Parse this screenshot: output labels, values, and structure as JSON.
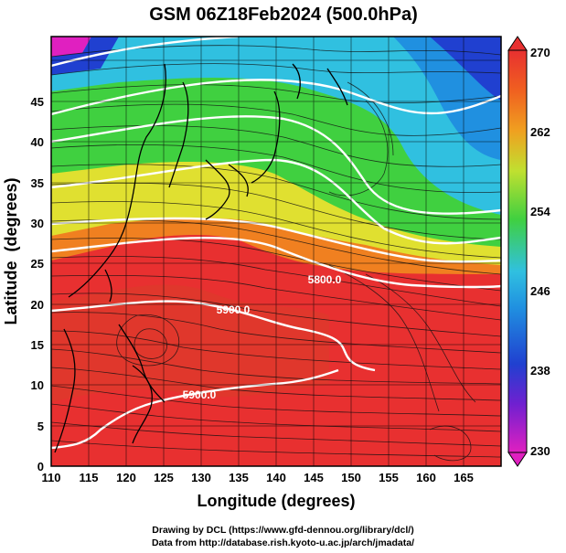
{
  "title": "GSM 06Z18Feb2024 (500.0hPa)",
  "map": {
    "xlabel": "Longitude (degrees)",
    "ylabel": "Latitude  (degrees)",
    "x_ticks": [
      "110",
      "115",
      "120",
      "125",
      "130",
      "135",
      "140",
      "145",
      "150",
      "155",
      "160",
      "165"
    ],
    "y_ticks": [
      "0",
      "5",
      "10",
      "15",
      "20",
      "25",
      "30",
      "35",
      "40",
      "45"
    ],
    "contour_labels": [
      "5800.0",
      "5900.0",
      "5900.0"
    ],
    "colorbar_ticks": [
      "270",
      "262",
      "254",
      "246",
      "238",
      "230"
    ],
    "colors": {
      "magenta": "#e020c0",
      "blue": "#2040d0",
      "cyan": "#30c0e0",
      "green": "#40d040",
      "yellow": "#e0e030",
      "orange": "#f08020",
      "red": "#e83030"
    }
  },
  "credits": [
    "Drawing by DCL (https://www.gfd-dennou.org/library/dcl/)",
    "Data from http://database.rish.kyoto-u.ac.jp/arch/jmadata/"
  ]
}
